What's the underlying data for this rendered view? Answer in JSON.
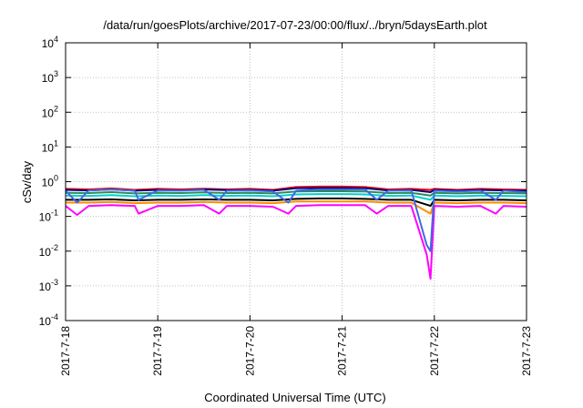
{
  "chart_data": {
    "type": "line",
    "title": "/data/run/goesPlots/archive/2017-07-23/00:00/flux/../bryn/5daysEarth.plot",
    "xlabel": "Coordinated Universal Time (UTC)",
    "ylabel": "cSv/day",
    "y_scale": "log",
    "ylim": [
      0.0001,
      10000
    ],
    "y_ticks": [
      {
        "base": "10",
        "exp": "-4",
        "value": 0.0001
      },
      {
        "base": "10",
        "exp": "-3",
        "value": 0.001
      },
      {
        "base": "10",
        "exp": "-2",
        "value": 0.01
      },
      {
        "base": "10",
        "exp": "-1",
        "value": 0.1
      },
      {
        "base": "10",
        "exp": "0",
        "value": 1
      },
      {
        "base": "10",
        "exp": "1",
        "value": 10
      },
      {
        "base": "10",
        "exp": "2",
        "value": 100
      },
      {
        "base": "10",
        "exp": "3",
        "value": 1000
      },
      {
        "base": "10",
        "exp": "4",
        "value": 10000
      }
    ],
    "xlim": [
      "2017-07-18T00:00",
      "2017-07-23T00:00"
    ],
    "x_ticks": [
      "2017-7-18",
      "2017-7-19",
      "2017-7-20",
      "2017-7-21",
      "2017-7-22",
      "2017-7-23"
    ],
    "grid": true,
    "legend": "none",
    "series": [
      {
        "color": "#ff0000",
        "x": [
          "2017-07-18T00:00",
          "2017-07-18T06:00",
          "2017-07-18T12:00",
          "2017-07-18T18:00",
          "2017-07-19T00:00",
          "2017-07-19T06:00",
          "2017-07-19T12:00",
          "2017-07-19T18:00",
          "2017-07-20T00:00",
          "2017-07-20T06:00",
          "2017-07-20T12:00",
          "2017-07-20T18:00",
          "2017-07-21T00:00",
          "2017-07-21T06:00",
          "2017-07-21T12:00",
          "2017-07-21T18:00",
          "2017-07-21T23:00",
          "2017-07-22T00:00",
          "2017-07-22T06:00",
          "2017-07-22T12:00",
          "2017-07-22T18:00",
          "2017-07-23T00:00"
        ],
        "values": [
          0.62,
          0.6,
          0.64,
          0.58,
          0.62,
          0.6,
          0.63,
          0.6,
          0.62,
          0.58,
          0.7,
          0.72,
          0.72,
          0.7,
          0.6,
          0.62,
          0.58,
          0.62,
          0.58,
          0.62,
          0.6,
          0.58
        ]
      },
      {
        "color": "#000080",
        "x": [
          "2017-07-18T00:00",
          "2017-07-18T06:00",
          "2017-07-18T12:00",
          "2017-07-18T18:00",
          "2017-07-19T00:00",
          "2017-07-19T06:00",
          "2017-07-19T12:00",
          "2017-07-19T18:00",
          "2017-07-20T00:00",
          "2017-07-20T06:00",
          "2017-07-20T12:00",
          "2017-07-20T18:00",
          "2017-07-21T00:00",
          "2017-07-21T06:00",
          "2017-07-21T12:00",
          "2017-07-21T18:00",
          "2017-07-21T23:00",
          "2017-07-22T00:00",
          "2017-07-22T06:00",
          "2017-07-22T12:00",
          "2017-07-22T18:00",
          "2017-07-23T00:00"
        ],
        "values": [
          0.58,
          0.56,
          0.6,
          0.55,
          0.58,
          0.56,
          0.6,
          0.57,
          0.58,
          0.55,
          0.65,
          0.66,
          0.66,
          0.65,
          0.56,
          0.58,
          0.5,
          0.58,
          0.55,
          0.58,
          0.56,
          0.55
        ]
      },
      {
        "color": "#2e8b57",
        "x": [
          "2017-07-18T00:00",
          "2017-07-18T06:00",
          "2017-07-18T12:00",
          "2017-07-18T18:00",
          "2017-07-19T00:00",
          "2017-07-19T06:00",
          "2017-07-19T12:00",
          "2017-07-19T18:00",
          "2017-07-20T00:00",
          "2017-07-20T06:00",
          "2017-07-20T12:00",
          "2017-07-20T18:00",
          "2017-07-21T00:00",
          "2017-07-21T06:00",
          "2017-07-21T12:00",
          "2017-07-21T18:00",
          "2017-07-21T23:00",
          "2017-07-22T00:00",
          "2017-07-22T06:00",
          "2017-07-22T12:00",
          "2017-07-22T18:00",
          "2017-07-23T00:00"
        ],
        "values": [
          0.48,
          0.47,
          0.5,
          0.46,
          0.48,
          0.47,
          0.49,
          0.47,
          0.48,
          0.46,
          0.52,
          0.53,
          0.53,
          0.52,
          0.47,
          0.48,
          0.4,
          0.48,
          0.46,
          0.48,
          0.47,
          0.46
        ]
      },
      {
        "color": "#00d0d0",
        "x": [
          "2017-07-18T00:00",
          "2017-07-18T06:00",
          "2017-07-18T12:00",
          "2017-07-18T18:00",
          "2017-07-19T00:00",
          "2017-07-19T06:00",
          "2017-07-19T12:00",
          "2017-07-19T18:00",
          "2017-07-20T00:00",
          "2017-07-20T06:00",
          "2017-07-20T12:00",
          "2017-07-20T18:00",
          "2017-07-21T00:00",
          "2017-07-21T06:00",
          "2017-07-21T12:00",
          "2017-07-21T18:00",
          "2017-07-21T23:00",
          "2017-07-22T00:00",
          "2017-07-22T06:00",
          "2017-07-22T12:00",
          "2017-07-22T18:00",
          "2017-07-23T00:00"
        ],
        "values": [
          0.4,
          0.39,
          0.41,
          0.38,
          0.4,
          0.39,
          0.41,
          0.39,
          0.4,
          0.38,
          0.43,
          0.44,
          0.44,
          0.43,
          0.39,
          0.4,
          0.3,
          0.4,
          0.38,
          0.4,
          0.39,
          0.38
        ]
      },
      {
        "color": "#000000",
        "x": [
          "2017-07-18T00:00",
          "2017-07-18T06:00",
          "2017-07-18T12:00",
          "2017-07-18T18:00",
          "2017-07-19T00:00",
          "2017-07-19T06:00",
          "2017-07-19T12:00",
          "2017-07-19T18:00",
          "2017-07-20T00:00",
          "2017-07-20T06:00",
          "2017-07-20T12:00",
          "2017-07-20T18:00",
          "2017-07-21T00:00",
          "2017-07-21T06:00",
          "2017-07-21T12:00",
          "2017-07-21T18:00",
          "2017-07-21T23:00",
          "2017-07-22T00:00",
          "2017-07-22T06:00",
          "2017-07-22T12:00",
          "2017-07-22T18:00",
          "2017-07-23T00:00"
        ],
        "values": [
          0.3,
          0.3,
          0.31,
          0.29,
          0.3,
          0.3,
          0.31,
          0.3,
          0.3,
          0.29,
          0.32,
          0.33,
          0.33,
          0.32,
          0.3,
          0.3,
          0.2,
          0.3,
          0.29,
          0.3,
          0.3,
          0.29
        ]
      },
      {
        "color": "#ff8c00",
        "x": [
          "2017-07-18T00:00",
          "2017-07-18T06:00",
          "2017-07-18T12:00",
          "2017-07-18T18:00",
          "2017-07-19T00:00",
          "2017-07-19T06:00",
          "2017-07-19T12:00",
          "2017-07-19T18:00",
          "2017-07-20T00:00",
          "2017-07-20T06:00",
          "2017-07-20T12:00",
          "2017-07-20T18:00",
          "2017-07-21T00:00",
          "2017-07-21T06:00",
          "2017-07-21T12:00",
          "2017-07-21T18:00",
          "2017-07-21T23:00",
          "2017-07-22T00:00",
          "2017-07-22T06:00",
          "2017-07-22T12:00",
          "2017-07-22T18:00",
          "2017-07-23T00:00"
        ],
        "values": [
          0.25,
          0.25,
          0.26,
          0.24,
          0.25,
          0.25,
          0.26,
          0.25,
          0.25,
          0.24,
          0.27,
          0.27,
          0.27,
          0.27,
          0.25,
          0.25,
          0.12,
          0.25,
          0.24,
          0.25,
          0.25,
          0.24
        ]
      },
      {
        "color": "#ff00ff",
        "x": [
          "2017-07-18T00:00",
          "2017-07-18T03:00",
          "2017-07-18T06:00",
          "2017-07-18T12:00",
          "2017-07-18T18:00",
          "2017-07-18T19:00",
          "2017-07-19T00:00",
          "2017-07-19T06:00",
          "2017-07-19T12:00",
          "2017-07-19T16:00",
          "2017-07-19T18:00",
          "2017-07-20T00:00",
          "2017-07-20T06:00",
          "2017-07-20T10:00",
          "2017-07-20T12:00",
          "2017-07-20T18:00",
          "2017-07-21T00:00",
          "2017-07-21T06:00",
          "2017-07-21T09:00",
          "2017-07-21T12:00",
          "2017-07-21T18:00",
          "2017-07-21T22:00",
          "2017-07-21T23:00",
          "2017-07-22T00:00",
          "2017-07-22T06:00",
          "2017-07-22T12:00",
          "2017-07-22T16:00",
          "2017-07-22T18:00",
          "2017-07-23T00:00"
        ],
        "values": [
          0.2,
          0.11,
          0.2,
          0.21,
          0.2,
          0.12,
          0.2,
          0.2,
          0.21,
          0.12,
          0.2,
          0.2,
          0.19,
          0.12,
          0.2,
          0.21,
          0.21,
          0.21,
          0.12,
          0.2,
          0.2,
          0.008,
          0.0016,
          0.2,
          0.19,
          0.2,
          0.12,
          0.2,
          0.19
        ]
      },
      {
        "color": "#4169e1",
        "x": [
          "2017-07-18T00:00",
          "2017-07-18T03:00",
          "2017-07-18T06:00",
          "2017-07-18T12:00",
          "2017-07-18T18:00",
          "2017-07-18T19:00",
          "2017-07-19T00:00",
          "2017-07-19T06:00",
          "2017-07-19T12:00",
          "2017-07-19T16:00",
          "2017-07-19T18:00",
          "2017-07-20T00:00",
          "2017-07-20T06:00",
          "2017-07-20T10:00",
          "2017-07-20T12:00",
          "2017-07-20T18:00",
          "2017-07-21T00:00",
          "2017-07-21T06:00",
          "2017-07-21T09:00",
          "2017-07-21T12:00",
          "2017-07-21T18:00",
          "2017-07-21T22:00",
          "2017-07-21T23:00",
          "2017-07-22T00:00",
          "2017-07-22T06:00",
          "2017-07-22T12:00",
          "2017-07-22T16:00",
          "2017-07-22T18:00",
          "2017-07-23T00:00"
        ],
        "values": [
          0.55,
          0.25,
          0.56,
          0.6,
          0.55,
          0.3,
          0.56,
          0.55,
          0.58,
          0.3,
          0.55,
          0.56,
          0.52,
          0.25,
          0.55,
          0.6,
          0.6,
          0.6,
          0.3,
          0.55,
          0.56,
          0.015,
          0.01,
          0.55,
          0.52,
          0.55,
          0.3,
          0.55,
          0.5
        ]
      }
    ]
  }
}
